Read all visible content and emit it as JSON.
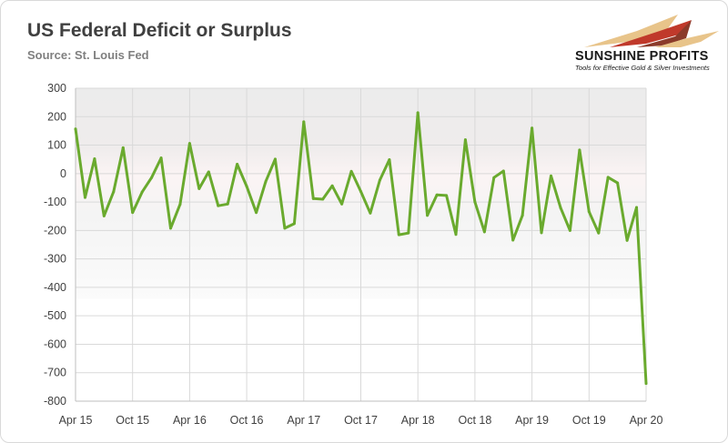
{
  "title": "US Federal Deficit or Surplus",
  "subtitle": "Source: St. Louis Fed",
  "brand": {
    "name": "SUNSHINE PROFITS",
    "tagline": "Tools for Effective Gold & Silver Investments",
    "colors": [
      "#e8c48a",
      "#c0392b",
      "#8b3a2a"
    ]
  },
  "chart_data": {
    "type": "line",
    "title": "US Federal Deficit or Surplus",
    "xlabel": "",
    "ylabel": "",
    "ylim": [
      -800,
      300
    ],
    "yticks": [
      300,
      200,
      100,
      0,
      -100,
      -200,
      -300,
      -400,
      -500,
      -600,
      -700,
      -800
    ],
    "xtick_labels": [
      "Apr 15",
      "Oct 15",
      "Apr 16",
      "Oct 16",
      "Apr 17",
      "Oct 17",
      "Apr 18",
      "Oct 18",
      "Apr 19",
      "Oct 19",
      "Apr 20"
    ],
    "grid": true,
    "line_color": "#6aaa2e",
    "series": [
      {
        "x": [
          "Apr 15",
          "May 15",
          "Jun 15",
          "Jul 15",
          "Aug 15",
          "Sep 15",
          "Oct 15",
          "Nov 15",
          "Dec 15",
          "Jan 16",
          "Feb 16",
          "Mar 16",
          "Apr 16",
          "May 16",
          "Jun 16",
          "Jul 16",
          "Aug 16",
          "Sep 16",
          "Oct 16",
          "Nov 16",
          "Dec 16",
          "Jan 17",
          "Feb 17",
          "Mar 17",
          "Apr 17",
          "May 17",
          "Jun 17",
          "Jul 17",
          "Aug 17",
          "Sep 17",
          "Oct 17",
          "Nov 17",
          "Dec 17",
          "Jan 18",
          "Feb 18",
          "Mar 18",
          "Apr 18",
          "May 18",
          "Jun 18",
          "Jul 18",
          "Aug 18",
          "Sep 18",
          "Oct 18",
          "Nov 18",
          "Dec 18",
          "Jan 19",
          "Feb 19",
          "Mar 19",
          "Apr 19",
          "May 19",
          "Jun 19",
          "Jul 19",
          "Aug 19",
          "Sep 19",
          "Oct 19",
          "Nov 19",
          "Dec 19",
          "Jan 20",
          "Feb 20",
          "Mar 20",
          "Apr 20"
        ],
        "values": [
          157,
          -84,
          52,
          -149,
          -64,
          91,
          -137,
          -65,
          -14,
          55,
          -192,
          -108,
          106,
          -53,
          6,
          -113,
          -107,
          33,
          -45,
          -137,
          -28,
          51,
          -192,
          -176,
          182,
          -88,
          -90,
          -43,
          -107,
          8,
          -63,
          -139,
          -23,
          49,
          -215,
          -209,
          214,
          -147,
          -75,
          -77,
          -214,
          119,
          -100,
          -205,
          -14,
          9,
          -234,
          -147,
          160,
          -208,
          -8,
          -120,
          -200,
          83,
          -134,
          -209,
          -13,
          -33,
          -235,
          -119,
          -738
        ]
      }
    ]
  }
}
